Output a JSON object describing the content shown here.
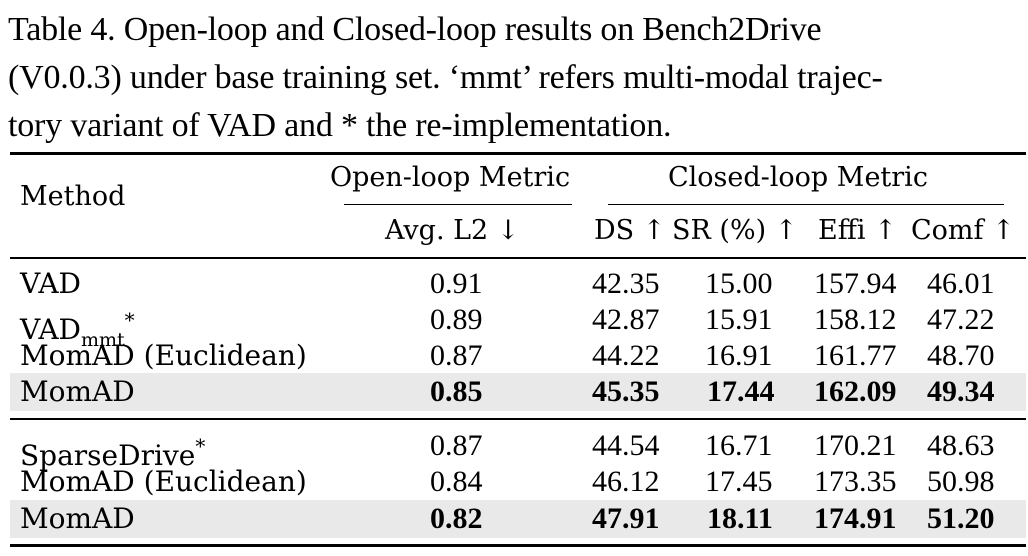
{
  "caption": {
    "line1": "Table 4.  Open-loop and Closed-loop results on Bench2Drive",
    "line2": "(V0.0.3) under base training set. ‘mmt’ refers multi-modal trajec-",
    "line3": "tory variant of VAD and * the re-implementation."
  },
  "table": {
    "header": {
      "method": "Method",
      "open_loop_group": "Open-loop Metric",
      "closed_loop_group": "Closed-loop Metric",
      "avg_l2": "Avg. L2 ↓",
      "ds": "DS ↑",
      "sr": "SR (%) ↑",
      "effi": "Effi ↑",
      "comf": "Comf ↑"
    },
    "group1": [
      {
        "method": "VAD",
        "l2": "0.91",
        "ds": "42.35",
        "sr": "15.00",
        "effi": "157.94",
        "comf": "46.01"
      },
      {
        "method_base": "VAD",
        "method_sub": "mmt",
        "method_sup": "*",
        "l2": "0.89",
        "ds": "42.87",
        "sr": "15.91",
        "effi": "158.12",
        "comf": "47.22"
      },
      {
        "method": "MomAD (Euclidean)",
        "l2": "0.87",
        "ds": "44.22",
        "sr": "16.91",
        "effi": "161.77",
        "comf": "48.70"
      },
      {
        "method": "MomAD",
        "l2": "0.85",
        "ds": "45.35",
        "sr": "17.44",
        "effi": "162.09",
        "comf": "49.34"
      }
    ],
    "group2": [
      {
        "method_base": "SparseDrive",
        "method_sup": "*",
        "l2": "0.87",
        "ds": "44.54",
        "sr": "16.71",
        "effi": "170.21",
        "comf": "48.63"
      },
      {
        "method": "MomAD (Euclidean)",
        "l2": "0.84",
        "ds": "46.12",
        "sr": "17.45",
        "effi": "173.35",
        "comf": "50.98"
      },
      {
        "method": "MomAD",
        "l2": "0.82",
        "ds": "47.91",
        "sr": "18.11",
        "effi": "174.91",
        "comf": "51.20"
      }
    ]
  },
  "colors": {
    "highlight_row": "#e9e9e9",
    "text": "#000000"
  }
}
